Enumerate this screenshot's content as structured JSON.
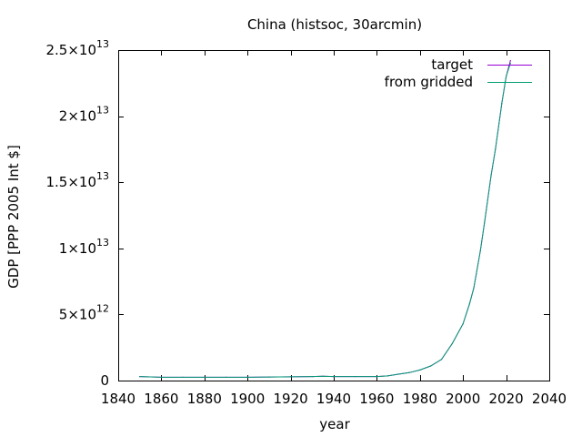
{
  "chart_data": {
    "type": "line",
    "title": "China (histsoc, 30arcmin)",
    "xlabel": "year",
    "ylabel": "GDP [PPP 2005 Int $]",
    "xlim": [
      1840,
      2040
    ],
    "ylim": [
      0,
      25000000000000
    ],
    "x_ticks": [
      {
        "value": 1840,
        "label": "1840"
      },
      {
        "value": 1860,
        "label": "1860"
      },
      {
        "value": 1880,
        "label": "1880"
      },
      {
        "value": 1900,
        "label": "1900"
      },
      {
        "value": 1920,
        "label": "1920"
      },
      {
        "value": 1940,
        "label": "1940"
      },
      {
        "value": 1960,
        "label": "1960"
      },
      {
        "value": 1980,
        "label": "1980"
      },
      {
        "value": 2000,
        "label": "2000"
      },
      {
        "value": 2020,
        "label": "2020"
      },
      {
        "value": 2040,
        "label": "2040"
      }
    ],
    "y_ticks": [
      {
        "value": 0,
        "mantissa": "0",
        "exponent": ""
      },
      {
        "value": 5000000000000,
        "mantissa": "5×10",
        "exponent": "12"
      },
      {
        "value": 10000000000000,
        "mantissa": "1×10",
        "exponent": "13"
      },
      {
        "value": 15000000000000,
        "mantissa": "1.5×10",
        "exponent": "13"
      },
      {
        "value": 20000000000000,
        "mantissa": "2×10",
        "exponent": "13"
      },
      {
        "value": 25000000000000,
        "mantissa": "2.5×10",
        "exponent": "13"
      }
    ],
    "legend_position": "top-right",
    "grid": false,
    "x": [
      1850,
      1860,
      1870,
      1880,
      1890,
      1900,
      1910,
      1920,
      1930,
      1935,
      1940,
      1950,
      1960,
      1965,
      1970,
      1975,
      1980,
      1985,
      1990,
      1995,
      2000,
      2003,
      2005,
      2008,
      2010,
      2013,
      2015,
      2018,
      2020,
      2022
    ],
    "series": [
      {
        "name": "target",
        "color": "#9400d3",
        "values": [
          300000000000,
          250000000000,
          250000000000,
          250000000000,
          250000000000,
          250000000000,
          270000000000,
          280000000000,
          300000000000,
          330000000000,
          300000000000,
          300000000000,
          300000000000,
          350000000000,
          480000000000,
          600000000000,
          800000000000,
          1100000000000,
          1600000000000,
          2800000000000,
          4300000000000,
          5800000000000,
          7000000000000,
          9800000000000,
          12000000000000,
          15500000000000,
          17500000000000,
          21000000000000,
          23000000000000,
          24200000000000
        ]
      },
      {
        "name": "from gridded",
        "color": "#009e73",
        "values": [
          300000000000,
          250000000000,
          250000000000,
          250000000000,
          250000000000,
          250000000000,
          270000000000,
          280000000000,
          300000000000,
          330000000000,
          300000000000,
          300000000000,
          300000000000,
          350000000000,
          480000000000,
          600000000000,
          800000000000,
          1100000000000,
          1600000000000,
          2800000000000,
          4300000000000,
          5800000000000,
          7000000000000,
          9800000000000,
          12000000000000,
          15500000000000,
          17500000000000,
          21000000000000,
          23000000000000,
          24000000000000
        ]
      }
    ]
  }
}
